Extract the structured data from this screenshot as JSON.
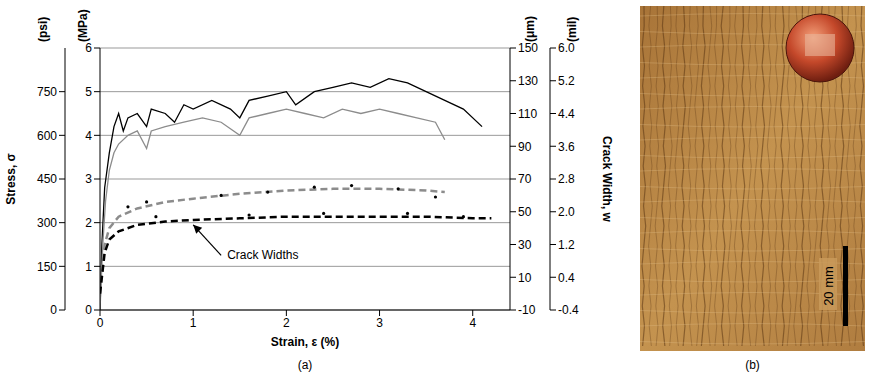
{
  "chart_data": {
    "type": "line",
    "caption": "(a)",
    "xlabel": "Strain, ε (%)",
    "ylabel": "Stress, σ",
    "y_unit": "(MPa)",
    "y2label": "Crack Width, w",
    "y2_unit": "(μm)",
    "xlim": [
      0,
      4.4
    ],
    "xticks": [
      0,
      1,
      2,
      3,
      4
    ],
    "ylim": [
      0,
      6
    ],
    "yticks": [
      0,
      1,
      2,
      3,
      4,
      5,
      6
    ],
    "y2lim": [
      -10,
      150
    ],
    "y2ticks": [
      -10,
      10,
      30,
      50,
      70,
      90,
      110,
      130,
      150
    ],
    "y_alt": {
      "unit": "(psi)",
      "lim": [
        0,
        900
      ],
      "ticks": [
        0,
        150,
        300,
        450,
        600,
        750
      ]
    },
    "y2_alt": {
      "unit": "(mil)",
      "lim": [
        -0.4,
        6.0
      ],
      "ticks": [
        -0.4,
        0.4,
        1.2,
        {
          "value": 2,
          "label": "2.0"
        },
        2.8,
        3.6,
        4.4,
        5.2,
        {
          "value": 6,
          "label": "6.0"
        }
      ]
    },
    "grid": true,
    "annotations": [
      {
        "text": "Crack Widths",
        "x": 1.3,
        "y": 1.25,
        "arrow_x": 1.0,
        "arrow_y": 1.95
      }
    ],
    "series": [
      {
        "color": "#000000",
        "line_style": "solid",
        "axis": "y",
        "x": [
          0,
          0.02,
          0.05,
          0.1,
          0.15,
          0.2,
          0.25,
          0.3,
          0.4,
          0.5,
          0.55,
          0.7,
          0.8,
          0.9,
          1.0,
          1.2,
          1.4,
          1.5,
          1.6,
          1.8,
          2.0,
          2.1,
          2.3,
          2.5,
          2.7,
          2.9,
          3.1,
          3.3,
          3.5,
          3.7,
          3.9,
          4.1
        ],
        "values": [
          0,
          1.5,
          2.8,
          3.6,
          4.2,
          4.5,
          4.1,
          4.4,
          4.5,
          4.2,
          4.6,
          4.5,
          4.3,
          4.7,
          4.6,
          4.8,
          4.6,
          4.4,
          4.8,
          4.9,
          5.0,
          4.7,
          5.0,
          5.1,
          5.2,
          5.1,
          5.3,
          5.2,
          5.0,
          4.8,
          4.6,
          4.2
        ]
      },
      {
        "color": "#8c8c8c",
        "line_style": "solid",
        "axis": "y",
        "x": [
          0,
          0.03,
          0.06,
          0.1,
          0.15,
          0.2,
          0.3,
          0.4,
          0.5,
          0.55,
          0.7,
          0.9,
          1.1,
          1.3,
          1.5,
          1.6,
          1.8,
          2.0,
          2.2,
          2.4,
          2.6,
          2.8,
          3.0,
          3.2,
          3.4,
          3.6,
          3.7
        ],
        "values": [
          0,
          1.5,
          2.5,
          3.2,
          3.6,
          3.8,
          4.0,
          4.1,
          3.7,
          4.1,
          4.2,
          4.3,
          4.4,
          4.3,
          4.0,
          4.4,
          4.5,
          4.6,
          4.5,
          4.4,
          4.6,
          4.5,
          4.6,
          4.5,
          4.4,
          4.3,
          3.9
        ]
      },
      {
        "color": "#8c8c8c",
        "line_style": "dashed",
        "axis": "y2",
        "x": [
          0,
          0.05,
          0.1,
          0.2,
          0.4,
          0.7,
          1.0,
          1.5,
          2.0,
          2.5,
          3.0,
          3.5,
          3.7
        ],
        "values": [
          0,
          30,
          40,
          47,
          52,
          56,
          58,
          61,
          63,
          64,
          64,
          63,
          62
        ]
      },
      {
        "color": "#000000",
        "line_style": "dashed",
        "axis": "y2",
        "x": [
          0,
          0.05,
          0.1,
          0.2,
          0.4,
          0.7,
          1.0,
          1.5,
          2.0,
          2.5,
          3.0,
          3.5,
          4.0,
          4.2
        ],
        "values": [
          0,
          25,
          33,
          38,
          42,
          44,
          45,
          46,
          47,
          47,
          47,
          47,
          46,
          46
        ]
      },
      {
        "type": "scatter",
        "marker": "dot",
        "color": "#000000",
        "axis": "y2",
        "x": [
          0.3,
          0.5,
          1.3,
          1.8,
          2.3,
          2.7,
          3.2,
          3.6,
          0.6,
          1.6,
          2.4,
          3.3,
          3.9
        ],
        "values": [
          53,
          56,
          60,
          62,
          65,
          66,
          64,
          59,
          47,
          48,
          49,
          49,
          47
        ]
      }
    ]
  },
  "photo": {
    "scale_bar_label": "20 mm",
    "caption": "(b)"
  }
}
